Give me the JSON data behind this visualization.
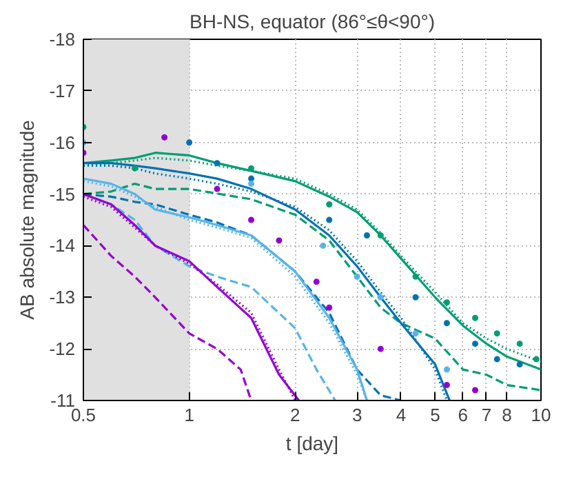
{
  "chart_data": {
    "type": "line",
    "title": "BH-NS, equator (86°≤θ<90°)",
    "xlabel": "t [day]",
    "ylabel": "AB absolute magnitude",
    "log": "x",
    "xlim": [
      0.5,
      10
    ],
    "ylim": [
      -11,
      -18
    ],
    "xticks": [
      0.5,
      1,
      2,
      3,
      4,
      5,
      6,
      7,
      8,
      10
    ],
    "yticks": [
      -18,
      -17,
      -16,
      -15,
      -14,
      -13,
      -12,
      -11
    ],
    "grid": true,
    "bands": [
      {
        "axis": "x",
        "from": 0.5,
        "to": 1,
        "color": "#e0e0e0"
      }
    ],
    "series": [
      {
        "color": "#009e73",
        "line_style": "solid",
        "x": [
          0.5,
          0.6,
          0.7,
          0.8,
          1,
          1.2,
          1.5,
          2,
          2.5,
          3,
          3.5,
          4,
          5,
          6,
          7,
          8,
          10
        ],
        "values": [
          -15.6,
          -15.65,
          -15.7,
          -15.8,
          -15.75,
          -15.6,
          -15.45,
          -15.25,
          -14.95,
          -14.65,
          -14.2,
          -13.75,
          -13.0,
          -12.45,
          -12.1,
          -11.85,
          -11.6
        ]
      },
      {
        "color": "#009e73",
        "line_style": "dotted",
        "x": [
          0.5,
          0.6,
          0.7,
          0.8,
          1,
          1.2,
          1.5,
          2,
          2.5,
          3,
          3.5,
          4,
          5,
          6,
          7,
          8,
          10
        ],
        "values": [
          -15.55,
          -15.6,
          -15.65,
          -15.7,
          -15.65,
          -15.55,
          -15.45,
          -15.3,
          -15.0,
          -14.7,
          -14.25,
          -13.8,
          -13.1,
          -12.5,
          -12.2,
          -12.0,
          -11.75
        ]
      },
      {
        "color": "#009e73",
        "line_style": "dashed",
        "x": [
          0.5,
          0.6,
          0.7,
          0.8,
          1,
          1.5,
          2,
          2.5,
          3,
          3.5,
          4,
          5,
          6,
          7,
          8,
          10
        ],
        "values": [
          -15.0,
          -15.05,
          -15.2,
          -15.1,
          -15.1,
          -14.9,
          -14.6,
          -14.1,
          -13.4,
          -12.8,
          -12.5,
          -12.2,
          -11.6,
          -11.5,
          -11.3,
          -11.2
        ]
      },
      {
        "color": "#0072b2",
        "line_style": "solid",
        "x": [
          0.5,
          0.6,
          0.7,
          0.8,
          1,
          1.2,
          1.5,
          2,
          2.5,
          3,
          3.5,
          4,
          5,
          5.5
        ],
        "values": [
          -15.6,
          -15.6,
          -15.55,
          -15.5,
          -15.4,
          -15.3,
          -15.1,
          -14.7,
          -14.2,
          -13.6,
          -13.0,
          -12.5,
          -11.7,
          -11.0
        ]
      },
      {
        "color": "#0072b2",
        "line_style": "dotted",
        "x": [
          0.5,
          0.6,
          0.7,
          0.8,
          1,
          1.2,
          1.5,
          2,
          2.5,
          3,
          3.5,
          4,
          5,
          5.4
        ],
        "values": [
          -15.55,
          -15.55,
          -15.5,
          -15.4,
          -15.3,
          -15.2,
          -15.05,
          -14.75,
          -14.3,
          -13.7,
          -13.1,
          -12.6,
          -11.6,
          -11.0
        ]
      },
      {
        "color": "#0072b2",
        "line_style": "dashed",
        "x": [
          0.5,
          0.6,
          0.7,
          0.8,
          1,
          1.2,
          1.5,
          2,
          2.5,
          3,
          3.5,
          4
        ],
        "values": [
          -15.0,
          -14.95,
          -14.85,
          -14.8,
          -14.6,
          -14.45,
          -14.2,
          -13.5,
          -12.7,
          -11.6,
          -11.1,
          -11.0
        ]
      },
      {
        "color": "#56b4e9",
        "line_style": "solid",
        "x": [
          0.5,
          0.6,
          0.7,
          0.8,
          1,
          1.2,
          1.5,
          2,
          2.5,
          3,
          3.2
        ],
        "values": [
          -15.3,
          -15.2,
          -15.0,
          -14.7,
          -14.55,
          -14.4,
          -14.2,
          -13.5,
          -12.6,
          -11.6,
          -11.0
        ]
      },
      {
        "color": "#56b4e9",
        "line_style": "dotted",
        "x": [
          0.5,
          0.6,
          0.7,
          0.8,
          1,
          1.2,
          1.5,
          2,
          2.5,
          3,
          3.2
        ],
        "values": [
          -15.25,
          -15.15,
          -14.95,
          -14.75,
          -14.5,
          -14.35,
          -14.15,
          -13.4,
          -12.5,
          -11.5,
          -11.0
        ]
      },
      {
        "color": "#56b4e9",
        "line_style": "dashed",
        "x": [
          0.5,
          0.6,
          0.7,
          0.8,
          1,
          1.2,
          1.5,
          2,
          2.3,
          2.6
        ],
        "values": [
          -15.0,
          -14.8,
          -14.5,
          -14.0,
          -13.6,
          -13.4,
          -13.2,
          -12.4,
          -11.6,
          -11.0
        ]
      },
      {
        "color": "#9400d3",
        "line_style": "solid",
        "x": [
          0.5,
          0.6,
          0.7,
          0.8,
          1,
          1.2,
          1.5,
          1.8,
          2.05
        ],
        "values": [
          -15.0,
          -14.8,
          -14.4,
          -14.0,
          -13.7,
          -13.2,
          -12.6,
          -11.5,
          -11.0
        ]
      },
      {
        "color": "#9400d3",
        "line_style": "dotted",
        "x": [
          0.5,
          0.6,
          0.7,
          0.8,
          1,
          1.2,
          1.5,
          1.8,
          2.0
        ],
        "values": [
          -14.95,
          -14.75,
          -14.35,
          -14.0,
          -13.65,
          -13.25,
          -12.7,
          -11.6,
          -11.0
        ]
      },
      {
        "color": "#9400d3",
        "line_style": "dashed",
        "x": [
          0.5,
          0.6,
          0.7,
          0.8,
          1,
          1.2,
          1.4,
          1.5
        ],
        "values": [
          -14.4,
          -13.8,
          -13.4,
          -13.0,
          -12.3,
          -12.0,
          -11.6,
          -11.0
        ]
      },
      {
        "type": "scatter",
        "marker": "circle",
        "color": "#009e73",
        "x": [
          0.5,
          0.7,
          1.5,
          2.5,
          3.5,
          4.4,
          5.4,
          6.5,
          7.5,
          8.7,
          9.7
        ],
        "values": [
          -16.3,
          -15.5,
          -15.5,
          -14.8,
          -14.2,
          -13.4,
          -12.9,
          -12.6,
          -12.3,
          -12.1,
          -11.8
        ]
      },
      {
        "type": "scatter",
        "marker": "circle",
        "color": "#0072b2",
        "x": [
          1.0,
          1.2,
          1.5,
          2.5,
          3.2,
          4.4,
          5.4,
          6.5,
          7.5,
          8.7
        ],
        "values": [
          -16.0,
          -15.6,
          -15.3,
          -14.5,
          -14.2,
          -13.0,
          -12.5,
          -12.1,
          -11.8,
          -11.7
        ]
      },
      {
        "type": "scatter",
        "marker": "circle",
        "color": "#56b4e9",
        "x": [
          0.5,
          1.5,
          2.4,
          3.0,
          3.5,
          4.4,
          5.4
        ],
        "values": [
          -16.0,
          -15.2,
          -14.0,
          -13.4,
          -13.0,
          -12.3,
          -11.6
        ]
      },
      {
        "type": "scatter",
        "marker": "circle",
        "color": "#9400d3",
        "x": [
          0.5,
          0.85,
          1.2,
          1.5,
          1.8,
          2.3,
          2.5,
          3.5,
          5.4,
          6.5
        ],
        "values": [
          -15.8,
          -16.1,
          -15.1,
          -14.5,
          -14.1,
          -13.3,
          -12.8,
          -12.0,
          -11.3,
          -11.2
        ]
      }
    ]
  }
}
